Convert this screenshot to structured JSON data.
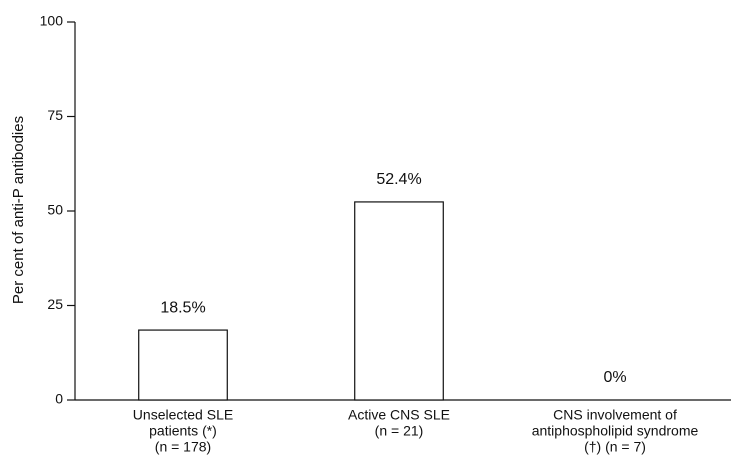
{
  "chart_data": {
    "type": "bar",
    "y_label": "Per cent of anti-P antibodies",
    "categories": [
      [
        "Unselected SLE",
        "patients (*)",
        "(n = 178)"
      ],
      [
        "Active CNS SLE",
        "(n = 21)"
      ],
      [
        "CNS involvement of",
        "antiphospholipid syndrome",
        "(†) (n = 7)"
      ]
    ],
    "values": [
      18.5,
      52.4,
      0
    ],
    "value_labels": [
      "18.5%",
      "52.4%",
      "0%"
    ],
    "color": "#ffffff",
    "ylim": [
      0,
      100
    ],
    "yticks": [
      0,
      25,
      50,
      75,
      100
    ],
    "grid": false
  }
}
